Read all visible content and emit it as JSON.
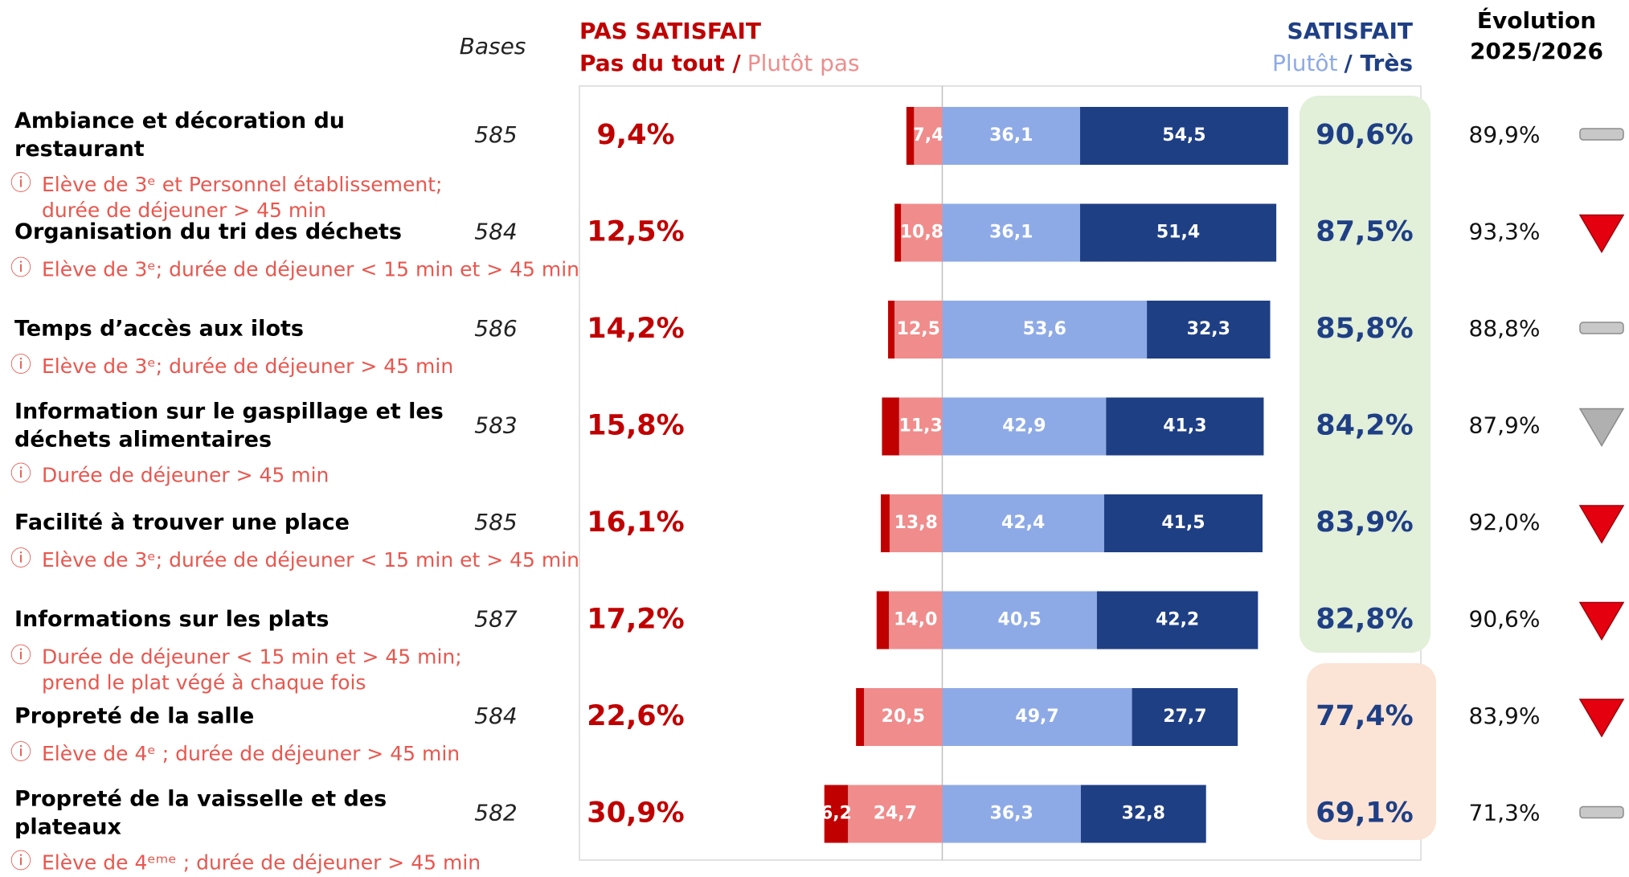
{
  "chart_data": {
    "type": "diverging-bar",
    "headers": {
      "bases": "Bases",
      "dissatisfied": "PAS SATISFAIT",
      "dissatisfied_strong": "Pas du tout /",
      "dissatisfied_mild": "Plutôt pas",
      "satisfied": "SATISFAIT",
      "satisfied_mild": "Plutôt",
      "satisfied_strong": "/ Très",
      "evolution": "Évolution",
      "evolution_period": "2025/2026"
    },
    "categories": [
      [
        "Ambiance et décoration du",
        "restaurant"
      ],
      [
        "Organisation du tri des déchets"
      ],
      [
        "Temps d’accès aux ilots"
      ],
      [
        "Information sur le gaspillage et les",
        "déchets alimentaires"
      ],
      [
        "Facilité à trouver une place"
      ],
      [
        "Informations sur les plats"
      ],
      [
        "Propreté de la salle"
      ],
      [
        "Propreté de la vaisselle et des",
        "plateaux"
      ]
    ],
    "bases": [
      585,
      584,
      586,
      583,
      585,
      587,
      584,
      582
    ],
    "notes": [
      [
        "Elève de 3ᵉ et Personnel établissement;",
        "durée de déjeuner > 45 min"
      ],
      [
        "Elève de 3ᵉ; durée de déjeuner < 15 min et > 45 min"
      ],
      [
        "Elève de 3ᵉ; durée de déjeuner > 45 min"
      ],
      [
        "Durée de déjeuner > 45 min"
      ],
      [
        "Elève de 3ᵉ; durée de déjeuner < 15 min et > 45 min"
      ],
      [
        "Durée de déjeuner < 15 min et > 45 min;",
        "prend le plat végé à chaque fois"
      ],
      [
        "Elève de 4ᵉ ; durée de déjeuner > 45 min"
      ],
      [
        "Elève de 4ᵉᵐᵉ ; durée de déjeuner > 45 min"
      ]
    ],
    "dissatisfied_totals": [
      "9,4%",
      "12,5%",
      "14,2%",
      "15,8%",
      "16,1%",
      "17,2%",
      "22,6%",
      "30,9%"
    ],
    "satisfied_totals": [
      "90,6%",
      "87,5%",
      "85,8%",
      "84,2%",
      "83,9%",
      "82,8%",
      "77,4%",
      "69,1%"
    ],
    "previous": [
      "89,9%",
      "93,3%",
      "88,8%",
      "87,9%",
      "92,0%",
      "90,6%",
      "83,9%",
      "71,3%"
    ],
    "evolution_icons": [
      "flat",
      "down-red",
      "flat",
      "down-grey",
      "down-red",
      "down-red",
      "down-red",
      "flat"
    ],
    "series": [
      {
        "name": "Pas du tout",
        "side": "negative",
        "color": "#c00000",
        "values": [
          2.0,
          1.7,
          1.7,
          4.5,
          2.3,
          3.2,
          2.1,
          6.2
        ],
        "value_labels": [
          null,
          null,
          null,
          null,
          null,
          null,
          null,
          "6,2"
        ]
      },
      {
        "name": "Plutôt pas",
        "side": "negative",
        "color": "#f08c8c",
        "values": [
          7.4,
          10.8,
          12.5,
          11.3,
          13.8,
          14.0,
          20.5,
          24.7
        ],
        "value_labels": [
          "7,4",
          "10,8",
          "12,5",
          "11,3",
          "13,8",
          "14,0",
          "20,5",
          "24,7"
        ]
      },
      {
        "name": "Plutôt",
        "side": "positive",
        "color": "#8eaae6",
        "values": [
          36.1,
          36.1,
          53.6,
          42.9,
          42.4,
          40.5,
          49.7,
          36.3
        ],
        "value_labels": [
          "36,1",
          "36,1",
          "53,6",
          "42,9",
          "42,4",
          "40,5",
          "49,7",
          "36,3"
        ]
      },
      {
        "name": "Très",
        "side": "positive",
        "color": "#1f3f85",
        "values": [
          54.5,
          51.4,
          32.3,
          41.3,
          41.5,
          42.2,
          27.7,
          32.8
        ],
        "value_labels": [
          "54,5",
          "51,4",
          "32,3",
          "41,3",
          "41,5",
          "42,2",
          "27,7",
          "32,8"
        ]
      }
    ]
  }
}
